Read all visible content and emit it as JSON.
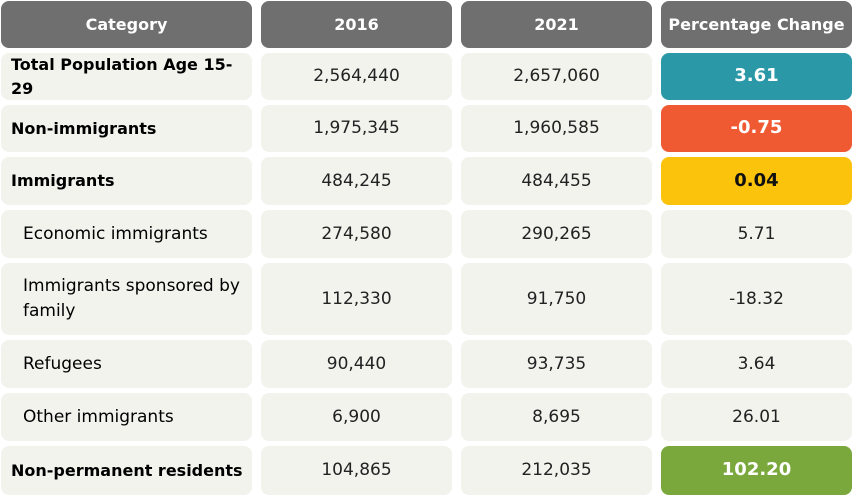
{
  "table": {
    "headers": [
      "Category",
      "2016",
      "2021",
      "Percentage Change"
    ],
    "rows": [
      {
        "category": "Total Population Age 15-29",
        "v2016": "2,564,440",
        "v2021": "2,657,060",
        "change": "3.61",
        "level": "total",
        "highlight": "#2b98a8"
      },
      {
        "category": "Non-immigrants",
        "v2016": "1,975,345",
        "v2021": "1,960,585",
        "change": "-0.75",
        "level": "group",
        "highlight": "#f05a32"
      },
      {
        "category": "Immigrants",
        "v2016": "484,245",
        "v2021": "484,455",
        "change": "0.04",
        "level": "group",
        "highlight": "#fbc30b"
      },
      {
        "category": "Economic immigrants",
        "v2016": "274,580",
        "v2021": "290,265",
        "change": "5.71",
        "level": "sub",
        "highlight": ""
      },
      {
        "category": "Immigrants sponsored by family",
        "v2016": "112,330",
        "v2021": "91,750",
        "change": "-18.32",
        "level": "sub",
        "highlight": ""
      },
      {
        "category": "Refugees",
        "v2016": "90,440",
        "v2021": "93,735",
        "change": "3.64",
        "level": "sub",
        "highlight": ""
      },
      {
        "category": "Other immigrants",
        "v2016": "6,900",
        "v2021": "8,695",
        "change": "26.01",
        "level": "sub",
        "highlight": ""
      },
      {
        "category": "Non-permanent residents",
        "v2016": "104,865",
        "v2021": "212,035",
        "change": "102.20",
        "level": "group",
        "highlight": "#7aa83c"
      }
    ]
  },
  "chart_data": {
    "type": "table",
    "columns": [
      "Category",
      "2016",
      "2021",
      "Percentage Change"
    ],
    "rows": [
      [
        "Total Population Age 15-29",
        2564440,
        2657060,
        3.61
      ],
      [
        "Non-immigrants",
        1975345,
        1960585,
        -0.75
      ],
      [
        "Immigrants",
        484245,
        484455,
        0.04
      ],
      [
        "Economic immigrants",
        274580,
        290265,
        5.71
      ],
      [
        "Immigrants sponsored by family",
        112330,
        91750,
        -18.32
      ],
      [
        "Refugees",
        90440,
        93735,
        3.64
      ],
      [
        "Other immigrants",
        6900,
        8695,
        26.01
      ],
      [
        "Non-permanent residents",
        104865,
        212035,
        102.2
      ]
    ]
  }
}
